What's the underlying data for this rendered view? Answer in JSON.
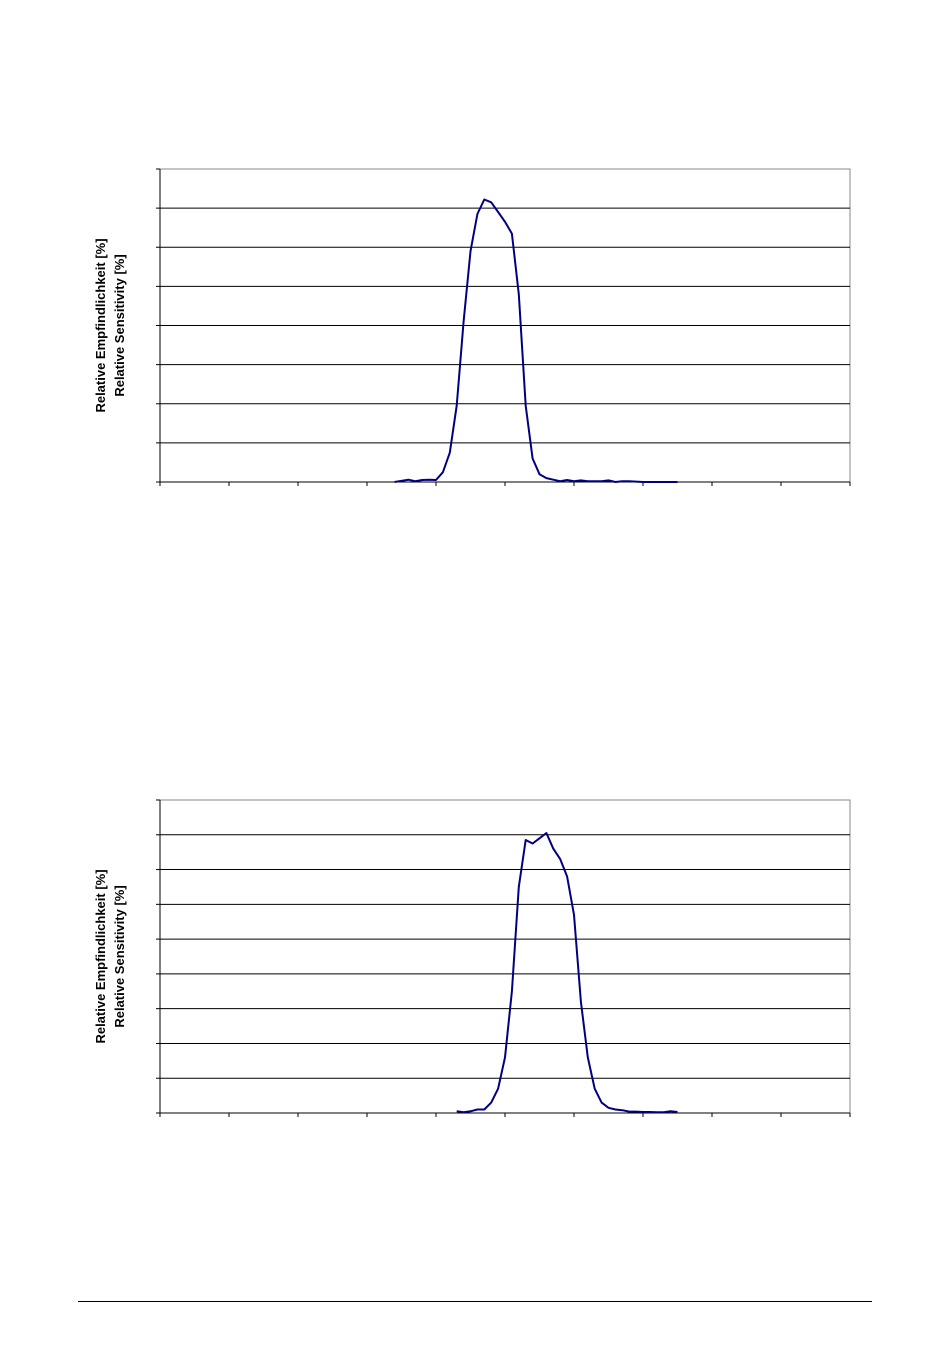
{
  "chart_data": [
    {
      "type": "line",
      "ylabel": [
        "Relative Empfindlichkeit [%]",
        "Relative Sensitivity [%]"
      ],
      "xlabel": "",
      "title": "",
      "xlim": [
        0,
        10
      ],
      "ylim": [
        0,
        8
      ],
      "grid": true,
      "line_color": "#000080",
      "x": [
        3.4,
        3.5,
        3.6,
        3.7,
        3.8,
        3.9,
        4.0,
        4.1,
        4.2,
        4.3,
        4.4,
        4.5,
        4.6,
        4.7,
        4.8,
        4.9,
        5.0,
        5.1,
        5.2,
        5.3,
        5.4,
        5.5,
        5.6,
        5.7,
        5.8,
        5.9,
        6.0,
        6.1,
        6.2,
        6.3,
        6.4,
        6.5,
        6.6,
        6.7,
        6.8,
        6.9,
        7.0,
        7.1,
        7.2,
        7.3,
        7.4,
        7.5
      ],
      "y": [
        0.0,
        0.03,
        0.06,
        0.02,
        0.05,
        0.06,
        0.05,
        0.25,
        0.75,
        1.95,
        4.1,
        5.9,
        6.85,
        7.22,
        7.15,
        6.9,
        6.65,
        6.35,
        4.8,
        1.95,
        0.6,
        0.2,
        0.1,
        0.06,
        0.02,
        0.05,
        0.02,
        0.04,
        0.02,
        0.02,
        0.02,
        0.04,
        0.0,
        0.02,
        0.02,
        0.01,
        0.0,
        0.0,
        0.0,
        0.0,
        0.0,
        0.0
      ]
    },
    {
      "type": "line",
      "ylabel": [
        "Relative Empfindlichkeit [%]",
        "Relative Sensitivity [%]"
      ],
      "xlabel": "",
      "title": "",
      "xlim": [
        0,
        10
      ],
      "ylim": [
        0,
        9
      ],
      "grid": true,
      "line_color": "#000080",
      "x": [
        4.3,
        4.4,
        4.5,
        4.6,
        4.7,
        4.8,
        4.9,
        5.0,
        5.1,
        5.2,
        5.3,
        5.4,
        5.5,
        5.6,
        5.7,
        5.8,
        5.9,
        6.0,
        6.1,
        6.2,
        6.3,
        6.4,
        6.5,
        6.6,
        6.7,
        6.8,
        6.9,
        7.0,
        7.1,
        7.2,
        7.3,
        7.4,
        7.5
      ],
      "y": [
        0.05,
        0.02,
        0.05,
        0.1,
        0.1,
        0.3,
        0.7,
        1.6,
        3.5,
        6.5,
        7.85,
        7.75,
        7.9,
        8.05,
        7.6,
        7.3,
        6.8,
        5.7,
        3.2,
        1.6,
        0.7,
        0.3,
        0.15,
        0.1,
        0.08,
        0.04,
        0.04,
        0.03,
        0.03,
        0.02,
        0.02,
        0.05,
        0.03
      ]
    }
  ]
}
